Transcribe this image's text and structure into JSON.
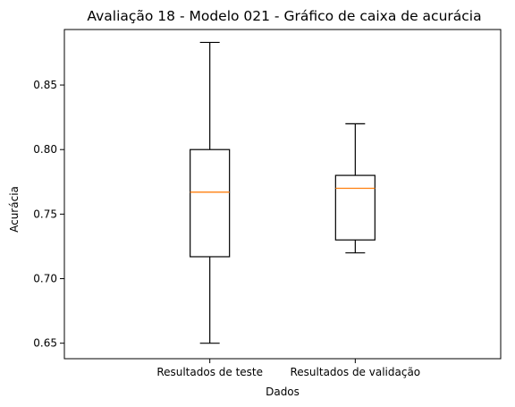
{
  "chart_data": {
    "type": "box",
    "title": "Avaliação 18 - Modelo 021 - Gráfico de caixa de acurácia",
    "xlabel": "Dados",
    "ylabel": "Acurácia",
    "ylim": [
      0.638,
      0.893
    ],
    "yticks": [
      0.65,
      0.7,
      0.75,
      0.8,
      0.85
    ],
    "ytick_labels": [
      "0.65",
      "0.70",
      "0.75",
      "0.80",
      "0.85"
    ],
    "grid": false,
    "categories": [
      "Resultados de teste",
      "Resultados de validação"
    ],
    "boxes": [
      {
        "name": "Resultados de teste",
        "whisker_low": 0.65,
        "q1": 0.717,
        "median": 0.767,
        "q3": 0.8,
        "whisker_high": 0.883
      },
      {
        "name": "Resultados de validação",
        "whisker_low": 0.72,
        "q1": 0.73,
        "median": 0.77,
        "q3": 0.78,
        "whisker_high": 0.82
      }
    ],
    "colors": {
      "box": "#000000",
      "median": "#ff7f0e",
      "axis": "#000000"
    }
  }
}
